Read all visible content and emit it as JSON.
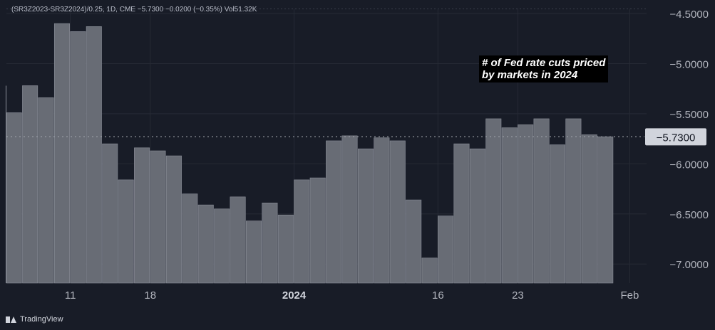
{
  "legend": {
    "text": "(SR3Z2023-SR3Z2024)/0.25, 1D, CME  −5.7300  −0.0200 (−0.35%)  Vol51.32K"
  },
  "annotation": {
    "line1": "# of Fed rate cuts priced",
    "line2": "by markets in 2024"
  },
  "branding": {
    "logo_text": "TradingView"
  },
  "colors": {
    "background": "#181c27",
    "bar_fill": "#686c75",
    "bar_edge": "#8b8f99",
    "grid": "#262a35",
    "axis_text": "#b2b5be",
    "price_label_bg": "#d1d4dc"
  },
  "chart_data": {
    "type": "bar",
    "title": "",
    "xlabel": "",
    "ylabel": "",
    "ylim": [
      -7.19,
      -4.45
    ],
    "y_ticks": [
      -4.5,
      -5.0,
      -5.5,
      -6.0,
      -6.5,
      -7.0
    ],
    "y_tick_labels": [
      "−4.5000",
      "−5.0000",
      "−5.5000",
      "−6.0000",
      "−6.5000",
      "−7.0000"
    ],
    "x_ticks": [
      {
        "index": 4,
        "label": "11",
        "bold": false
      },
      {
        "index": 9,
        "label": "18",
        "bold": false
      },
      {
        "index": 18,
        "label": "2024",
        "bold": true
      },
      {
        "index": 27,
        "label": "16",
        "bold": false
      },
      {
        "index": 32,
        "label": "23",
        "bold": false
      },
      {
        "index": 39,
        "label": "Feb",
        "bold": false
      }
    ],
    "last_price": -5.73,
    "last_price_label": "−5.7300",
    "values": [
      -5.49,
      -5.22,
      -5.34,
      -4.6,
      -4.68,
      -4.63,
      -5.8,
      -6.16,
      -5.84,
      -5.87,
      -5.92,
      -6.3,
      -6.41,
      -6.45,
      -6.33,
      -6.57,
      -6.39,
      -6.51,
      -6.16,
      -6.14,
      -5.77,
      -5.72,
      -5.85,
      -5.74,
      -5.77,
      -6.36,
      -6.94,
      -6.52,
      -5.8,
      -5.85,
      -5.55,
      -5.64,
      -5.61,
      -5.55,
      -5.81,
      -5.55,
      -5.71,
      -5.73
    ]
  }
}
